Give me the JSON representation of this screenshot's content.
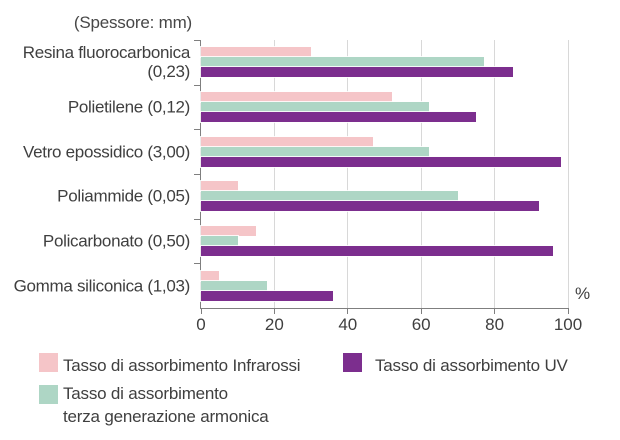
{
  "title": "(Spessore: mm)",
  "chart_data": {
    "type": "bar",
    "orientation": "horizontal",
    "title": "(Spessore: mm)",
    "categories": [
      "Resina fluorocarbonica (0,23)",
      "Polietilene (0,12)",
      "Vetro epossidico (3,00)",
      "Poliammide (0,05)",
      "Policarbonato (0,50)",
      "Gomma siliconica (1,03)"
    ],
    "series": [
      {
        "name": "Tasso di assorbimento Infrarossi",
        "color": "#f5c5c8",
        "values": [
          30,
          52,
          47,
          10,
          15,
          5
        ]
      },
      {
        "name": "Tasso di assorbimento terza generazione armonica",
        "color": "#aed6c5",
        "values": [
          77,
          62,
          62,
          70,
          10,
          18
        ]
      },
      {
        "name": "Tasso di assorbimento UV",
        "color": "#7c2e8e",
        "values": [
          85,
          75,
          98,
          92,
          96,
          36
        ]
      }
    ],
    "xlabel": "%",
    "xlim": [
      0,
      100
    ],
    "xticks": [
      0,
      20,
      40,
      60,
      80,
      100
    ],
    "grid": true,
    "legend_position": "bottom"
  },
  "legend": {
    "infrarossi": {
      "label": "Tasso di assorbimento Infrarossi"
    },
    "armonica": {
      "label_line1": "Tasso di assorbimento",
      "label_line2": "terza generazione armonica"
    },
    "uv": {
      "label": "Tasso di assorbimento UV"
    }
  },
  "axis": {
    "percent_label": "%"
  },
  "colors": {
    "infrarossi": "#f5c5c8",
    "armonica": "#aed6c5",
    "uv": "#7c2e8e",
    "gridline": "#d8d8d8",
    "axis": "#7f7f7f",
    "text": "#3f3f3f"
  }
}
